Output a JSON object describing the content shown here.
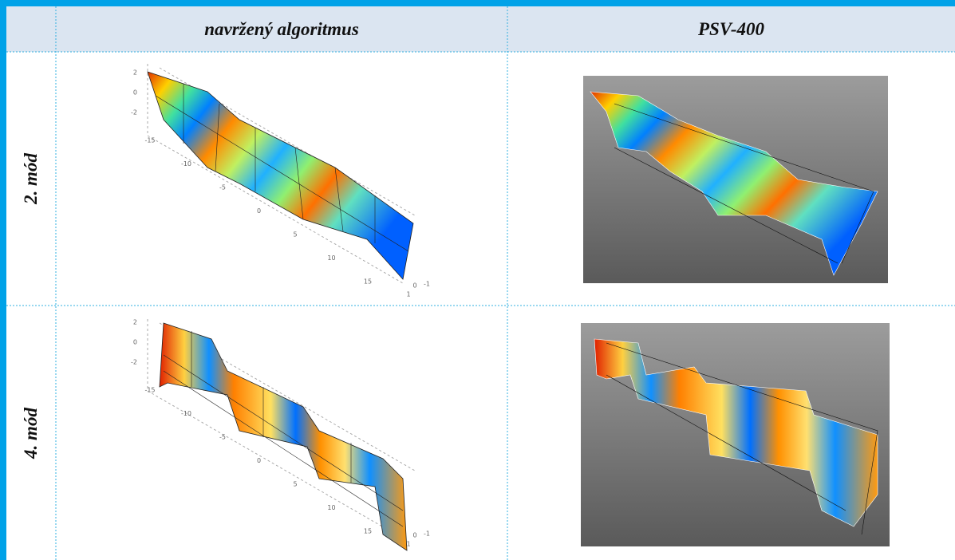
{
  "table": {
    "header": {
      "left": "navržený algoritmus",
      "right": "PSV-400"
    },
    "rows": [
      {
        "label": "2. mód",
        "z_ticks": [
          2,
          0,
          -2
        ],
        "x_ticks": [
          -15,
          -10,
          -5,
          0,
          5,
          10,
          15
        ],
        "y_ticks": [
          1,
          0,
          -1
        ]
      },
      {
        "label": "4. mód",
        "z_ticks": [
          2,
          0,
          -2
        ],
        "x_ticks": [
          -15,
          -10,
          -5,
          0,
          5,
          10,
          15
        ],
        "y_ticks": [
          1,
          0,
          -1
        ]
      }
    ]
  }
}
